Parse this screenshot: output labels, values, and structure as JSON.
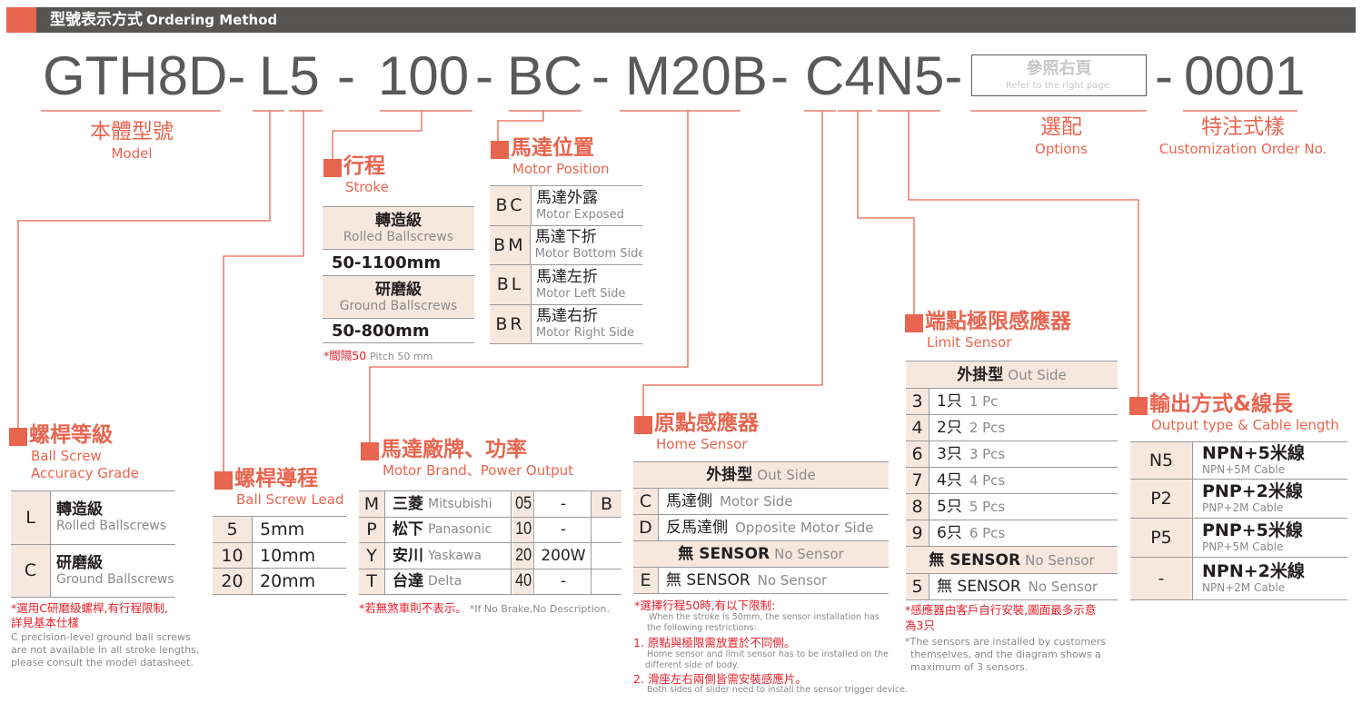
{
  "header": {
    "title_zh": "型號表示方式",
    "title_en": "Ordering Method"
  },
  "code": {
    "model": "GTH8D-",
    "lead_grade": "L5",
    "sep1": "-",
    "stroke": "100",
    "sep2": "-",
    "motor_position": "BC",
    "sep3": "-",
    "motor": "M20B",
    "sep4": "-",
    "sensors": "C4N5-",
    "options_box": {
      "zh": "參照右頁",
      "en": "Refer to the right page."
    },
    "sep5": "-",
    "order_no": "0001"
  },
  "labels": {
    "model": {
      "zh": "本體型號",
      "en": "Model"
    },
    "options": {
      "zh": "選配",
      "en": "Options"
    },
    "custom": {
      "zh": "特注式樣",
      "en": "Customization Order No."
    }
  },
  "accuracy": {
    "title_zh": "螺桿等級",
    "title_en1": "Ball Screw",
    "title_en2": "Accuracy Grade",
    "rows": [
      {
        "code": "L",
        "zh": "轉造級",
        "en": "Rolled Ballscrews"
      },
      {
        "code": "C",
        "zh": "研磨級",
        "en": "Ground Ballscrews"
      }
    ],
    "note_zh1": "*選用C研磨級螺桿,有行程限制,",
    "note_zh2": "詳見基本仕樣",
    "note_en1": "C precision-level ground ball screws",
    "note_en2": "are not available in all stroke lengths,",
    "note_en3": "please consult the model datasheet."
  },
  "lead": {
    "title_zh": "螺桿導程",
    "title_en": "Ball Screw Lead",
    "rows": [
      {
        "code": "5",
        "value": "5mm"
      },
      {
        "code": "10",
        "value": "10mm"
      },
      {
        "code": "20",
        "value": "20mm"
      }
    ]
  },
  "stroke": {
    "title_zh": "行程",
    "title_en": "Stroke",
    "rows": [
      {
        "zh": "轉造級",
        "en": "Rolled Ballscrews",
        "range": "50-1100mm"
      },
      {
        "zh": "研磨級",
        "en": "Ground Ballscrews",
        "range": "50-800mm"
      }
    ],
    "note_zh": "*間隔50",
    "note_en": "Pitch 50 mm"
  },
  "motor_position": {
    "title_zh": "馬達位置",
    "title_en": "Motor Position",
    "rows": [
      {
        "code": "BC",
        "zh": "馬達外露",
        "en": "Motor Exposed"
      },
      {
        "code": "BM",
        "zh": "馬達下折",
        "en": "Motor Bottom Side"
      },
      {
        "code": "BL",
        "zh": "馬達左折",
        "en": "Motor Left Side"
      },
      {
        "code": "BR",
        "zh": "馬達右折",
        "en": "Motor Right Side"
      }
    ]
  },
  "motor_brand": {
    "title_zh": "馬達廠牌、功率",
    "title_en": "Motor Brand、Power Output",
    "rows": [
      {
        "code": "M",
        "zh": "三菱",
        "en": "Mitsubishi",
        "num": "05",
        "power": "-",
        "brake": "B"
      },
      {
        "code": "P",
        "zh": "松下",
        "en": "Panasonic",
        "num": "10",
        "power": "-",
        "brake": ""
      },
      {
        "code": "Y",
        "zh": "安川",
        "en": "Yaskawa",
        "num": "20",
        "power": "200W",
        "brake": ""
      },
      {
        "code": "T",
        "zh": "台達",
        "en": "Delta",
        "num": "40",
        "power": "-",
        "brake": ""
      }
    ],
    "note_zh": "*若無煞車則不表示。",
    "note_en": "*If No Brake,No Description."
  },
  "home_sensor": {
    "title_zh": "原點感應器",
    "title_en": "Home Sensor",
    "group1": {
      "zh": "外掛型",
      "en": "Out Side"
    },
    "rows": [
      {
        "code": "C",
        "zh": "馬達側",
        "en": "Motor Side"
      },
      {
        "code": "D",
        "zh": "反馬達側",
        "en": "Opposite Motor Side"
      }
    ],
    "group2": {
      "zh": "無 SENSOR",
      "en": "No Sensor"
    },
    "none_row": {
      "code": "E",
      "zh": "無  SENSOR",
      "en": "No Sensor"
    },
    "note_zh": "*選擇行程50時,有以下限制:",
    "note_en1": "When the stroke is 50mm, the sensor installation has",
    "note_en2": "the following restrictions:",
    "item1_zh": "1. 原點與極限需放置於不同側。",
    "item1_en1": "Home sensor and limit sensor has to be installed on the",
    "item1_en2": "different side of body.",
    "item2_zh": "2. 滑座左右兩側皆需安裝感應片。",
    "item2_en": "Both sides of slider need to install the sensor trigger device."
  },
  "limit_sensor": {
    "title_zh": "端點極限感應器",
    "title_en": "Limit Sensor",
    "group1": {
      "zh": "外掛型",
      "en": "Out Side"
    },
    "rows": [
      {
        "code": "3",
        "zh": "1只",
        "en": "1 Pc"
      },
      {
        "code": "4",
        "zh": "2只",
        "en": "2 Pcs"
      },
      {
        "code": "6",
        "zh": "3只",
        "en": "3 Pcs"
      },
      {
        "code": "7",
        "zh": "4只",
        "en": "4 Pcs"
      },
      {
        "code": "8",
        "zh": "5只",
        "en": "5 Pcs"
      },
      {
        "code": "9",
        "zh": "6只",
        "en": "6 Pcs"
      }
    ],
    "group2": {
      "zh": "無 SENSOR",
      "en": "No Sensor"
    },
    "none_row": {
      "code": "5",
      "zh": "無 SENSOR",
      "en": "No Sensor"
    },
    "note_zh1": "*感應器由客戶自行安裝,圖面最多示意",
    "note_zh2": "為3只",
    "note_en1": "*The sensors are installed by customers",
    "note_en2": "themselves, and the diagram shows a",
    "note_en3": "maximum of 3 sensors."
  },
  "output": {
    "title_zh": "輸出方式&線長",
    "title_en": "Output type & Cable length",
    "rows": [
      {
        "code": "N5",
        "zh": "NPN+5米線",
        "en": "NPN+5M Cable"
      },
      {
        "code": "P2",
        "zh": "PNP+2米線",
        "en": "PNP+2M Cable"
      },
      {
        "code": "P5",
        "zh": "PNP+5米線",
        "en": "PNP+5M Cable"
      },
      {
        "code": "-",
        "zh": "NPN+2米線",
        "en": "NPN+2M Cable"
      }
    ]
  },
  "colors": {
    "accent": "#e8654f",
    "header_bar": "#575553",
    "cell_bg": "#f7e8df",
    "note_red": "#e8202a",
    "code_text": "#58595b"
  }
}
